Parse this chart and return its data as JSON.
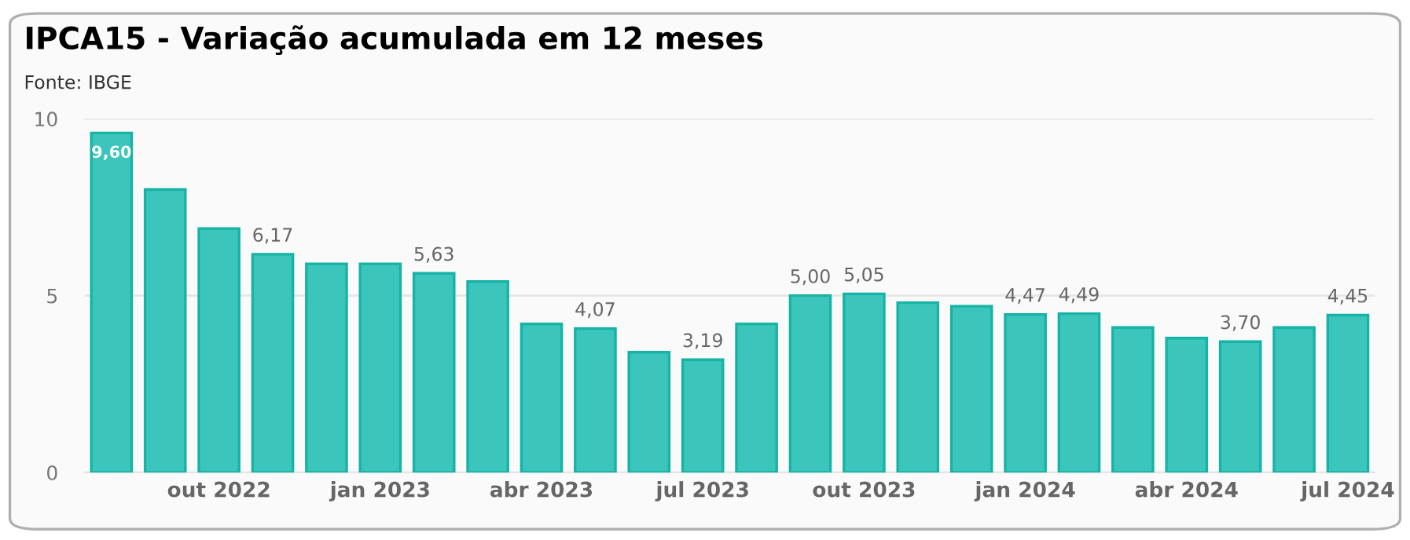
{
  "chart_data": {
    "type": "bar",
    "title": "IPCA15 - Variação acumulada em 12 meses",
    "annotations": [
      "Fonte: IBGE"
    ],
    "categories": [
      null,
      null,
      "out 2022",
      null,
      null,
      "jan 2023",
      null,
      null,
      "abr 2023",
      null,
      null,
      "jul 2023",
      null,
      null,
      "out 2023",
      null,
      null,
      "jan 2024",
      null,
      null,
      "abr 2024",
      null,
      null,
      "jul 2024"
    ],
    "values": [
      9.6,
      8.0,
      6.9,
      6.17,
      5.9,
      5.9,
      5.63,
      5.4,
      4.2,
      4.07,
      3.4,
      3.19,
      4.2,
      5.0,
      5.05,
      4.8,
      4.7,
      4.47,
      4.49,
      4.1,
      3.8,
      3.7,
      4.1,
      4.45
    ],
    "value_labels": [
      "9,60",
      null,
      null,
      "6,17",
      null,
      null,
      "5,63",
      null,
      null,
      "4,07",
      null,
      "3,19",
      null,
      "5,00",
      "5,05",
      null,
      null,
      "4,47",
      "4,49",
      null,
      null,
      "3,70",
      null,
      "4,45"
    ],
    "color": "#3cc6bb",
    "ylim": [
      0,
      10
    ],
    "yticks": [
      0,
      5,
      10
    ],
    "grid": "y"
  }
}
